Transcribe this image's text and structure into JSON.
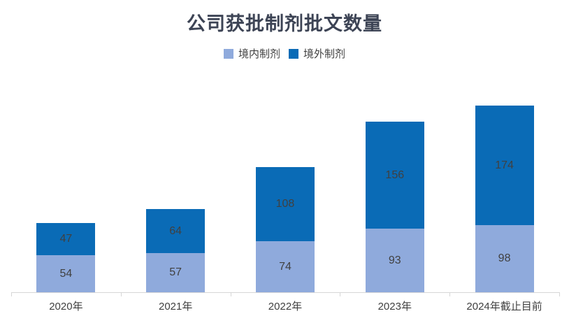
{
  "chart_data": {
    "type": "bar",
    "stacked": true,
    "title": "公司获批制剂批文数量",
    "categories": [
      "2020年",
      "2021年",
      "2022年",
      "2023年",
      "2024年截止目前"
    ],
    "series": [
      {
        "key": "domestic",
        "name": "境内制剂",
        "color": "#8FAADC",
        "values": [
          54,
          57,
          74,
          93,
          98
        ]
      },
      {
        "key": "overseas",
        "name": "境外制剂",
        "color": "#0A6BB6",
        "values": [
          47,
          64,
          108,
          156,
          174
        ]
      }
    ],
    "totals": [
      101,
      121,
      182,
      249,
      272
    ],
    "ylim": [
      0,
      300
    ],
    "xlabel": "",
    "ylabel": "",
    "grid": false,
    "legend_position": "top",
    "value_labels": true
  },
  "colors": {
    "title_text": "#3d4455",
    "label_text": "#404040",
    "axis_line": "#d6d6d6",
    "background": "#ffffff",
    "series_domestic": "#8FAADC",
    "series_overseas": "#0A6BB6"
  }
}
